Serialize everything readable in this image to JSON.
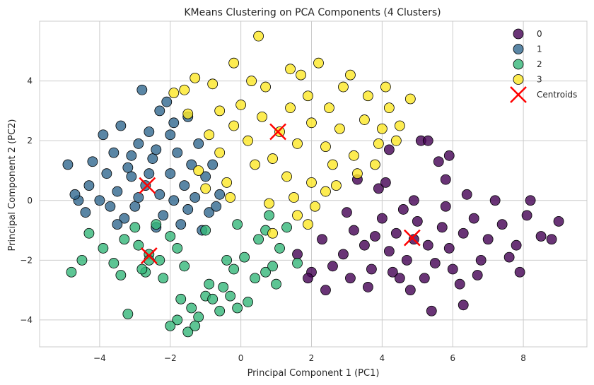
{
  "chart_data": {
    "type": "scatter",
    "title": "KMeans Clustering on PCA Components (4 Clusters)",
    "xlabel": "Principal Component 1 (PC1)",
    "ylabel": "Principal Component 2 (PC2)",
    "xlim": [
      -5.7,
      9.8
    ],
    "ylim": [
      -4.9,
      6.0
    ],
    "xticks": [
      -4,
      -2,
      0,
      2,
      4,
      6,
      8
    ],
    "yticks": [
      -4,
      -2,
      0,
      2,
      4
    ],
    "xtick_labels": [
      "−4",
      "−2",
      "0",
      "2",
      "4",
      "6",
      "8"
    ],
    "ytick_labels": [
      "−4",
      "−2",
      "0",
      "2",
      "4"
    ],
    "grid": true,
    "legend_position": "top-right",
    "series": [
      {
        "name": "0",
        "color": "#440154",
        "points": [
          [
            4.9,
            -1.3
          ],
          [
            4.4,
            -1.1
          ],
          [
            5.3,
            -1.5
          ],
          [
            5.7,
            -0.9
          ],
          [
            4.2,
            -1.7
          ],
          [
            5.0,
            -0.7
          ],
          [
            5.9,
            -1.6
          ],
          [
            3.8,
            -1.2
          ],
          [
            4.7,
            -2.0
          ],
          [
            6.3,
            -1.1
          ],
          [
            3.5,
            -1.5
          ],
          [
            5.5,
            -2.1
          ],
          [
            6.6,
            -0.6
          ],
          [
            4.0,
            -0.6
          ],
          [
            6.0,
            -2.3
          ],
          [
            3.2,
            -1.0
          ],
          [
            7.0,
            -1.3
          ],
          [
            4.6,
            -0.3
          ],
          [
            5.2,
            -2.6
          ],
          [
            2.9,
            -1.8
          ],
          [
            7.4,
            -0.8
          ],
          [
            3.0,
            -0.4
          ],
          [
            6.8,
            -2.0
          ],
          [
            2.6,
            -2.2
          ],
          [
            7.8,
            -1.5
          ],
          [
            4.3,
            -2.4
          ],
          [
            5.8,
            -0.2
          ],
          [
            2.3,
            -1.3
          ],
          [
            8.1,
            -0.5
          ],
          [
            3.6,
            -2.9
          ],
          [
            6.2,
            -2.8
          ],
          [
            4.8,
            -3.0
          ],
          [
            2.0,
            -2.4
          ],
          [
            8.5,
            -1.2
          ],
          [
            7.9,
            -2.4
          ],
          [
            9.0,
            -0.7
          ],
          [
            3.9,
            0.4
          ],
          [
            4.1,
            0.6
          ],
          [
            3.3,
            0.7
          ],
          [
            5.4,
            -3.7
          ],
          [
            5.6,
            1.3
          ],
          [
            6.4,
            0.2
          ],
          [
            7.2,
            0.0
          ],
          [
            8.2,
            0.0
          ],
          [
            5.1,
            2.0
          ],
          [
            5.3,
            2.0
          ],
          [
            6.3,
            -3.5
          ],
          [
            4.5,
            -2.6
          ],
          [
            3.7,
            -2.3
          ],
          [
            1.9,
            -2.6
          ],
          [
            1.6,
            -1.8
          ],
          [
            2.4,
            -3.0
          ],
          [
            5.9,
            1.5
          ],
          [
            7.6,
            -1.9
          ],
          [
            8.8,
            -1.3
          ],
          [
            6.7,
            -2.5
          ],
          [
            3.1,
            -2.6
          ],
          [
            4.2,
            1.7
          ],
          [
            5.8,
            0.7
          ],
          [
            4.9,
            0.0
          ]
        ]
      },
      {
        "name": "1",
        "color": "#31688e",
        "points": [
          [
            -2.7,
            0.5
          ],
          [
            -3.1,
            0.8
          ],
          [
            -2.3,
            0.2
          ],
          [
            -3.5,
            0.3
          ],
          [
            -2.0,
            0.9
          ],
          [
            -3.0,
            -0.2
          ],
          [
            -1.6,
            0.5
          ],
          [
            -3.8,
            0.9
          ],
          [
            -2.5,
            1.4
          ],
          [
            -4.0,
            0.0
          ],
          [
            -1.3,
            0.1
          ],
          [
            -2.9,
            1.9
          ],
          [
            -3.3,
            -0.6
          ],
          [
            -1.8,
            1.6
          ],
          [
            -4.3,
            0.5
          ],
          [
            -2.2,
            -0.5
          ],
          [
            -1.0,
            0.8
          ],
          [
            -3.6,
            1.6
          ],
          [
            -2.6,
            2.3
          ],
          [
            -4.4,
            -0.4
          ],
          [
            -1.5,
            -0.3
          ],
          [
            -3.9,
            2.2
          ],
          [
            -1.2,
            1.9
          ],
          [
            -2.1,
            3.3
          ],
          [
            -2.8,
            3.7
          ],
          [
            -4.9,
            1.2
          ],
          [
            -4.6,
            0.0
          ],
          [
            -0.9,
            -0.4
          ],
          [
            -1.9,
            2.6
          ],
          [
            -3.4,
            2.5
          ],
          [
            -0.8,
            1.2
          ],
          [
            -2.4,
            -0.9
          ],
          [
            -1.7,
            -0.8
          ],
          [
            -4.2,
            1.3
          ],
          [
            -0.6,
            0.2
          ],
          [
            -3.2,
            1.1
          ],
          [
            -2.0,
            2.2
          ],
          [
            -1.4,
            1.2
          ],
          [
            -3.7,
            -0.2
          ],
          [
            -2.6,
            0.9
          ],
          [
            -1.1,
            -1.0
          ],
          [
            -0.7,
            -0.2
          ],
          [
            -4.7,
            0.2
          ],
          [
            -2.3,
            3.0
          ],
          [
            -1.5,
            2.8
          ],
          [
            -3.5,
            -0.8
          ],
          [
            -2.9,
            0.1
          ],
          [
            -1.9,
            0.0
          ],
          [
            -3.1,
            1.5
          ],
          [
            -2.4,
            1.7
          ]
        ]
      },
      {
        "name": "2",
        "color": "#35b779",
        "points": [
          [
            -2.6,
            -1.8
          ],
          [
            -2.9,
            -1.5
          ],
          [
            -2.3,
            -2.0
          ],
          [
            -3.3,
            -1.3
          ],
          [
            -2.0,
            -1.2
          ],
          [
            -3.6,
            -2.1
          ],
          [
            -2.7,
            -2.4
          ],
          [
            -3.9,
            -1.6
          ],
          [
            -1.8,
            -1.6
          ],
          [
            -4.3,
            -1.1
          ],
          [
            -3.0,
            -0.9
          ],
          [
            -2.2,
            -2.6
          ],
          [
            -4.5,
            -2.0
          ],
          [
            -1.6,
            -2.2
          ],
          [
            -3.4,
            -2.5
          ],
          [
            -4.8,
            -2.4
          ],
          [
            -2.4,
            -0.8
          ],
          [
            -3.2,
            -3.8
          ],
          [
            -1.0,
            -3.2
          ],
          [
            -1.4,
            -3.6
          ],
          [
            -1.8,
            -4.0
          ],
          [
            -2.0,
            -4.2
          ],
          [
            -1.5,
            -4.4
          ],
          [
            -0.8,
            -3.3
          ],
          [
            -1.2,
            -3.9
          ],
          [
            -0.6,
            -3.7
          ],
          [
            -0.3,
            -3.2
          ],
          [
            -0.5,
            -2.9
          ],
          [
            -1.7,
            -3.3
          ],
          [
            -1.3,
            -4.2
          ],
          [
            -0.1,
            -3.6
          ],
          [
            0.2,
            -3.4
          ],
          [
            -0.2,
            -2.3
          ],
          [
            0.4,
            -2.6
          ],
          [
            0.7,
            -2.4
          ],
          [
            0.5,
            -1.3
          ],
          [
            0.1,
            -1.9
          ],
          [
            -0.4,
            -2.0
          ],
          [
            0.9,
            -2.2
          ],
          [
            1.0,
            -2.8
          ],
          [
            1.1,
            -1.6
          ],
          [
            0.7,
            -1.0
          ],
          [
            0.8,
            -0.5
          ],
          [
            -0.1,
            -0.8
          ],
          [
            1.3,
            -0.9
          ],
          [
            1.6,
            -2.1
          ],
          [
            -1.0,
            -1.0
          ],
          [
            -0.9,
            -2.8
          ],
          [
            -2.6,
            -2.0
          ],
          [
            -2.8,
            -2.3
          ]
        ]
      },
      {
        "name": "3",
        "color": "#fde725",
        "points": [
          [
            1.1,
            2.3
          ],
          [
            0.6,
            2.8
          ],
          [
            1.6,
            1.9
          ],
          [
            0.2,
            2.0
          ],
          [
            2.0,
            2.6
          ],
          [
            0.9,
            1.4
          ],
          [
            1.4,
            3.1
          ],
          [
            -0.2,
            2.5
          ],
          [
            2.4,
            1.8
          ],
          [
            0.4,
            1.2
          ],
          [
            1.9,
            3.5
          ],
          [
            -0.6,
            1.6
          ],
          [
            2.8,
            2.4
          ],
          [
            0.0,
            3.2
          ],
          [
            1.3,
            0.8
          ],
          [
            -0.9,
            2.2
          ],
          [
            3.2,
            1.5
          ],
          [
            0.7,
            3.8
          ],
          [
            2.5,
            3.1
          ],
          [
            -1.2,
            1.0
          ],
          [
            3.5,
            2.7
          ],
          [
            -0.4,
            0.6
          ],
          [
            2.0,
            0.6
          ],
          [
            -1.5,
            2.9
          ],
          [
            3.9,
            1.9
          ],
          [
            1.7,
            4.2
          ],
          [
            -1.9,
            3.6
          ],
          [
            4.2,
            3.1
          ],
          [
            2.9,
            3.8
          ],
          [
            0.3,
            4.0
          ],
          [
            -0.8,
            3.9
          ],
          [
            4.0,
            2.4
          ],
          [
            3.6,
            3.5
          ],
          [
            4.5,
            2.5
          ],
          [
            4.8,
            3.4
          ],
          [
            -1.6,
            3.7
          ],
          [
            -1.3,
            4.1
          ],
          [
            0.5,
            5.5
          ],
          [
            -0.2,
            4.6
          ],
          [
            1.4,
            4.4
          ],
          [
            2.2,
            4.6
          ],
          [
            3.1,
            4.2
          ],
          [
            4.4,
            2.0
          ],
          [
            3.8,
            1.2
          ],
          [
            2.6,
            1.2
          ],
          [
            1.5,
            0.1
          ],
          [
            0.8,
            -0.1
          ],
          [
            0.9,
            -1.1
          ],
          [
            1.6,
            -0.5
          ],
          [
            1.9,
            -0.8
          ],
          [
            2.1,
            -0.2
          ],
          [
            2.4,
            0.3
          ],
          [
            -0.3,
            0.1
          ],
          [
            -1.0,
            0.4
          ],
          [
            -0.6,
            3.0
          ],
          [
            3.3,
            0.9
          ],
          [
            2.7,
            0.5
          ],
          [
            4.1,
            3.8
          ]
        ]
      }
    ],
    "centroids": {
      "name": "Centroids",
      "color": "#ff0000",
      "points": [
        [
          4.85,
          -1.25
        ],
        [
          -2.65,
          0.5
        ],
        [
          -2.6,
          -1.85
        ],
        [
          1.05,
          2.3
        ]
      ]
    }
  }
}
